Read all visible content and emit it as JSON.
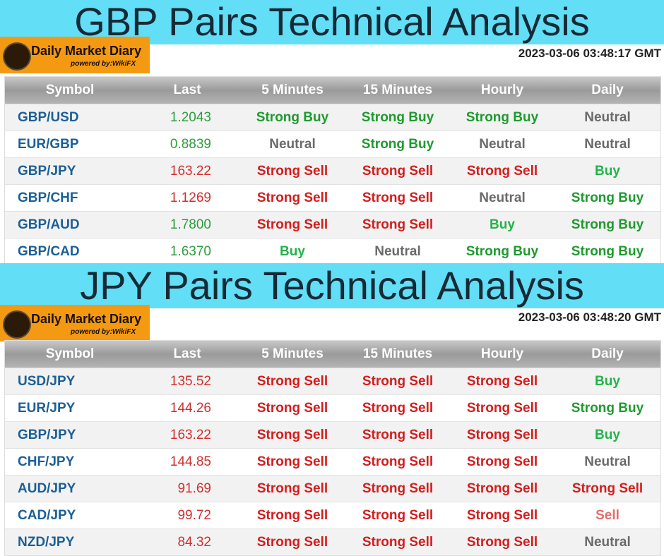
{
  "sections": [
    {
      "title": "GBP Pairs Technical Analysis",
      "logo": {
        "name": "Daily Market Diary",
        "tagline": "powered by:WikiFX"
      },
      "timestamp": "2023-03-06 03:48:17 GMT",
      "table": {
        "headers": [
          "Symbol",
          "Last",
          "5 Minutes",
          "15 Minutes",
          "Hourly",
          "Daily"
        ],
        "rows": [
          {
            "symbol": "GBP/USD",
            "last": "1.2043",
            "last_color": "#2e9e3e",
            "signals": [
              {
                "text": "Strong Buy",
                "color": "#1e9a2e"
              },
              {
                "text": "Strong Buy",
                "color": "#1e9a2e"
              },
              {
                "text": "Strong Buy",
                "color": "#1e9a2e"
              },
              {
                "text": "Neutral",
                "color": "#6a6a6a"
              }
            ]
          },
          {
            "symbol": "EUR/GBP",
            "last": "0.8839",
            "last_color": "#2e9e3e",
            "signals": [
              {
                "text": "Neutral",
                "color": "#6a6a6a"
              },
              {
                "text": "Strong Buy",
                "color": "#1e9a2e"
              },
              {
                "text": "Neutral",
                "color": "#6a6a6a"
              },
              {
                "text": "Neutral",
                "color": "#6a6a6a"
              }
            ]
          },
          {
            "symbol": "GBP/JPY",
            "last": "163.22",
            "last_color": "#d32f2f",
            "signals": [
              {
                "text": "Strong Sell",
                "color": "#d41c1c"
              },
              {
                "text": "Strong Sell",
                "color": "#d41c1c"
              },
              {
                "text": "Strong Sell",
                "color": "#d41c1c"
              },
              {
                "text": "Buy",
                "color": "#22b34a"
              }
            ]
          },
          {
            "symbol": "GBP/CHF",
            "last": "1.1269",
            "last_color": "#d32f2f",
            "signals": [
              {
                "text": "Strong Sell",
                "color": "#d41c1c"
              },
              {
                "text": "Strong Sell",
                "color": "#d41c1c"
              },
              {
                "text": "Neutral",
                "color": "#6a6a6a"
              },
              {
                "text": "Strong Buy",
                "color": "#1e9a2e"
              }
            ]
          },
          {
            "symbol": "GBP/AUD",
            "last": "1.7800",
            "last_color": "#2e9e3e",
            "signals": [
              {
                "text": "Strong Sell",
                "color": "#d41c1c"
              },
              {
                "text": "Strong Sell",
                "color": "#d41c1c"
              },
              {
                "text": "Buy",
                "color": "#22b34a"
              },
              {
                "text": "Strong Buy",
                "color": "#1e9a2e"
              }
            ]
          },
          {
            "symbol": "GBP/CAD",
            "last": "1.6370",
            "last_color": "#2e9e3e",
            "signals": [
              {
                "text": "Buy",
                "color": "#22b34a"
              },
              {
                "text": "Neutral",
                "color": "#6a6a6a"
              },
              {
                "text": "Strong Buy",
                "color": "#1e9a2e"
              },
              {
                "text": "Strong Buy",
                "color": "#1e9a2e"
              }
            ]
          }
        ]
      }
    },
    {
      "title": "JPY Pairs Technical Analysis",
      "logo": {
        "name": "Daily Market Diary",
        "tagline": "powered by:WikiFX"
      },
      "timestamp": "2023-03-06 03:48:20 GMT",
      "table": {
        "headers": [
          "Symbol",
          "Last",
          "5 Minutes",
          "15 Minutes",
          "Hourly",
          "Daily"
        ],
        "rows": [
          {
            "symbol": "USD/JPY",
            "last": "135.52",
            "last_color": "#d32f2f",
            "signals": [
              {
                "text": "Strong Sell",
                "color": "#d41c1c"
              },
              {
                "text": "Strong Sell",
                "color": "#d41c1c"
              },
              {
                "text": "Strong Sell",
                "color": "#d41c1c"
              },
              {
                "text": "Buy",
                "color": "#22b34a"
              }
            ]
          },
          {
            "symbol": "EUR/JPY",
            "last": "144.26",
            "last_color": "#d32f2f",
            "signals": [
              {
                "text": "Strong Sell",
                "color": "#d41c1c"
              },
              {
                "text": "Strong Sell",
                "color": "#d41c1c"
              },
              {
                "text": "Strong Sell",
                "color": "#d41c1c"
              },
              {
                "text": "Strong Buy",
                "color": "#1e9a2e"
              }
            ]
          },
          {
            "symbol": "GBP/JPY",
            "last": "163.22",
            "last_color": "#d32f2f",
            "signals": [
              {
                "text": "Strong Sell",
                "color": "#d41c1c"
              },
              {
                "text": "Strong Sell",
                "color": "#d41c1c"
              },
              {
                "text": "Strong Sell",
                "color": "#d41c1c"
              },
              {
                "text": "Buy",
                "color": "#22b34a"
              }
            ]
          },
          {
            "symbol": "CHF/JPY",
            "last": "144.85",
            "last_color": "#d32f2f",
            "signals": [
              {
                "text": "Strong Sell",
                "color": "#d41c1c"
              },
              {
                "text": "Strong Sell",
                "color": "#d41c1c"
              },
              {
                "text": "Strong Sell",
                "color": "#d41c1c"
              },
              {
                "text": "Neutral",
                "color": "#6a6a6a"
              }
            ]
          },
          {
            "symbol": "AUD/JPY",
            "last": "91.69",
            "last_color": "#d32f2f",
            "signals": [
              {
                "text": "Strong Sell",
                "color": "#d41c1c"
              },
              {
                "text": "Strong Sell",
                "color": "#d41c1c"
              },
              {
                "text": "Strong Sell",
                "color": "#d41c1c"
              },
              {
                "text": "Strong Sell",
                "color": "#d41c1c"
              }
            ]
          },
          {
            "symbol": "CAD/JPY",
            "last": "99.72",
            "last_color": "#d32f2f",
            "signals": [
              {
                "text": "Strong Sell",
                "color": "#d41c1c"
              },
              {
                "text": "Strong Sell",
                "color": "#d41c1c"
              },
              {
                "text": "Strong Sell",
                "color": "#d41c1c"
              },
              {
                "text": "Sell",
                "color": "#e86a6a"
              }
            ]
          },
          {
            "symbol": "NZD/JPY",
            "last": "84.32",
            "last_color": "#d32f2f",
            "signals": [
              {
                "text": "Strong Sell",
                "color": "#d41c1c"
              },
              {
                "text": "Strong Sell",
                "color": "#d41c1c"
              },
              {
                "text": "Strong Sell",
                "color": "#d41c1c"
              },
              {
                "text": "Neutral",
                "color": "#6a6a6a"
              }
            ]
          }
        ]
      }
    }
  ]
}
